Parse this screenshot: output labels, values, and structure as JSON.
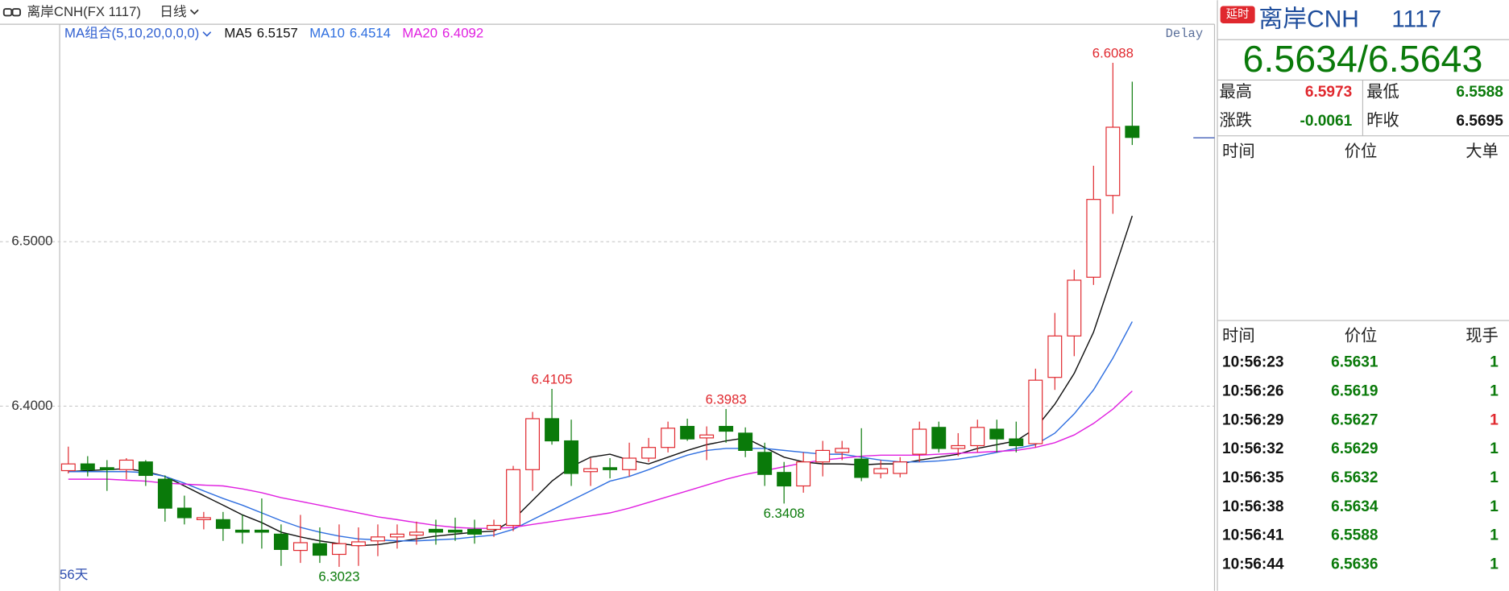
{
  "toolbar": {
    "symbol": "离岸CNH(FX 1117)",
    "period": "日线"
  },
  "chart_data": {
    "type": "candlestick",
    "legend_title": "MA组合(5,10,20,0,0,0)",
    "delay_label": "Delay",
    "period_count_label": "56天",
    "up_color": "#e0282e",
    "down_color": "#0a7a0a",
    "grid": true,
    "ylim": [
      6.2901,
      6.6322
    ],
    "yticks": [
      {
        "value": 6.4,
        "label": "6.4000"
      },
      {
        "value": 6.5,
        "label": "6.5000"
      }
    ],
    "open": [
      6.3608,
      6.3649,
      6.3626,
      6.3614,
      6.3661,
      6.3556,
      6.338,
      6.331,
      6.331,
      6.3246,
      6.3246,
      6.3222,
      6.3123,
      6.3164,
      6.3099,
      6.3152,
      6.3181,
      6.3205,
      6.3216,
      6.3251,
      6.3246,
      6.3251,
      6.3251,
      6.3275,
      6.3614,
      6.3924,
      6.3789,
      6.3602,
      6.3626,
      6.3614,
      6.3684,
      6.3749,
      6.3877,
      6.3807,
      6.3877,
      6.3836,
      6.3719,
      6.3597,
      6.3515,
      6.3661,
      6.3719,
      6.3678,
      6.3591,
      6.3591,
      6.3708,
      6.3871,
      6.3743,
      6.376,
      6.386,
      6.3801,
      6.3772,
      6.4175,
      6.4427,
      6.4784,
      6.5281,
      6.5702
    ],
    "high": [
      6.3754,
      6.3696,
      6.3672,
      6.3684,
      6.3672,
      6.3579,
      6.3456,
      6.3357,
      6.3357,
      6.3339,
      6.3439,
      6.3281,
      6.3339,
      6.3263,
      6.3281,
      6.3263,
      6.3281,
      6.3281,
      6.3298,
      6.331,
      6.3322,
      6.331,
      6.331,
      6.3637,
      6.3965,
      6.4105,
      6.3918,
      6.3684,
      6.3684,
      6.3778,
      6.3807,
      6.3906,
      6.3924,
      6.3877,
      6.3983,
      6.3871,
      6.3778,
      6.3661,
      6.3719,
      6.3789,
      6.3789,
      6.3866,
      6.3672,
      6.369,
      6.3906,
      6.3906,
      6.3836,
      6.3918,
      6.3918,
      6.3906,
      6.4228,
      6.4567,
      6.483,
      6.5462,
      6.6088,
      6.5973
    ],
    "low": [
      6.3591,
      6.3573,
      6.3485,
      6.3556,
      6.3515,
      6.3298,
      6.3281,
      6.3251,
      6.3181,
      6.3164,
      6.3134,
      6.3029,
      6.3047,
      6.3047,
      6.3023,
      6.3029,
      6.3088,
      6.3134,
      6.3158,
      6.3158,
      6.3181,
      6.3164,
      6.3205,
      6.324,
      6.3485,
      6.3766,
      6.3515,
      6.3515,
      6.3561,
      6.3573,
      6.3661,
      6.3719,
      6.3789,
      6.3672,
      6.3778,
      6.369,
      6.3515,
      6.3408,
      6.3474,
      6.3573,
      6.3672,
      6.3544,
      6.3561,
      6.3567,
      6.3661,
      6.3719,
      6.3696,
      6.3719,
      6.3719,
      6.3719,
      6.3749,
      6.4099,
      6.4304,
      6.4737,
      6.517,
      6.5588
    ],
    "close": [
      6.3649,
      6.3614,
      6.3614,
      6.3672,
      6.3579,
      6.338,
      6.3322,
      6.3322,
      6.3257,
      6.3234,
      6.3234,
      6.3129,
      6.317,
      6.3094,
      6.3164,
      6.3175,
      6.3205,
      6.3222,
      6.3234,
      6.3234,
      6.3234,
      6.3222,
      6.3275,
      6.3614,
      6.3924,
      6.3789,
      6.3591,
      6.362,
      6.3614,
      6.3684,
      6.3749,
      6.3866,
      6.3801,
      6.3825,
      6.3848,
      6.3731,
      6.3585,
      6.3515,
      6.3661,
      6.3731,
      6.3743,
      6.3567,
      6.362,
      6.3661,
      6.386,
      6.3743,
      6.376,
      6.3871,
      6.3801,
      6.376,
      6.4158,
      6.4427,
      6.4766,
      6.5257,
      6.5696,
      6.5634
    ],
    "overlays": [
      {
        "name": "MA5",
        "value": 6.5157,
        "color": "#111111",
        "values": [
          6.3602,
          6.3608,
          6.3614,
          6.362,
          6.3602,
          6.3573,
          6.3515,
          6.3456,
          6.3398,
          6.3339,
          6.3292,
          6.3234,
          6.3205,
          6.3181,
          6.3164,
          6.3152,
          6.3158,
          6.3175,
          6.3193,
          6.321,
          6.3222,
          6.3234,
          6.324,
          6.331,
          6.3427,
          6.3544,
          6.3632,
          6.369,
          6.3708,
          6.3672,
          6.3649,
          6.369,
          6.3731,
          6.3766,
          6.3789,
          6.3807,
          6.3749,
          6.369,
          6.3661,
          6.3649,
          6.3649,
          6.3643,
          6.3649,
          6.3649,
          6.3672,
          6.369,
          6.3708,
          6.3743,
          6.3766,
          6.3789,
          6.3865,
          6.4012,
          6.4199,
          6.445,
          6.4801,
          6.5157
        ]
      },
      {
        "name": "MA10",
        "value": 6.4514,
        "color": "#2f6fe0",
        "values": [
          6.3602,
          6.3602,
          6.3602,
          6.3602,
          6.3596,
          6.3573,
          6.3532,
          6.3485,
          6.3439,
          6.3398,
          6.3351,
          6.3304,
          6.3263,
          6.3234,
          6.321,
          6.3193,
          6.3187,
          6.3181,
          6.3181,
          6.3187,
          6.3193,
          6.3205,
          6.3216,
          6.3251,
          6.331,
          6.3368,
          6.3427,
          6.3485,
          6.3544,
          6.3573,
          6.3614,
          6.3661,
          6.3702,
          6.3731,
          6.3743,
          6.3743,
          6.3743,
          6.3731,
          6.3719,
          6.3708,
          6.3708,
          6.369,
          6.3672,
          6.3661,
          6.3661,
          6.3667,
          6.3678,
          6.3696,
          6.3719,
          6.3743,
          6.3766,
          6.3836,
          6.3953,
          6.4099,
          6.4292,
          6.4514
        ]
      },
      {
        "name": "MA20",
        "value": 6.4092,
        "color": "#e020e0",
        "values": [
          6.3556,
          6.3556,
          6.3556,
          6.355,
          6.3544,
          6.3532,
          6.3526,
          6.352,
          6.3515,
          6.3497,
          6.3474,
          6.3444,
          6.3421,
          6.3398,
          6.3374,
          6.3351,
          6.3327,
          6.331,
          6.3292,
          6.3275,
          6.3263,
          6.3257,
          6.3257,
          6.3263,
          6.3281,
          6.3298,
          6.3316,
          6.3333,
          6.3351,
          6.338,
          6.3415,
          6.345,
          6.3485,
          6.352,
          6.3556,
          6.3585,
          6.3608,
          6.3632,
          6.3655,
          6.3672,
          6.3684,
          6.3696,
          6.3702,
          6.3702,
          6.3702,
          6.3708,
          6.3714,
          6.3719,
          6.3725,
          6.3731,
          6.3749,
          6.3778,
          6.3825,
          6.3895,
          6.3982,
          6.4092
        ]
      }
    ],
    "annotations": [
      6.6088,
      6.4105,
      6.3983,
      6.3408,
      6.3023
    ]
  },
  "panel": {
    "badge": "延时",
    "name": "离岸CNH",
    "code": "1117",
    "price": "6.5634/6.5643",
    "stats": [
      {
        "label": "最高",
        "value": "6.5973",
        "color": "#e0282e"
      },
      {
        "label": "最低",
        "value": "6.5588",
        "color": "#0a7a0a"
      },
      {
        "label": "涨跌",
        "value": "-0.0061",
        "color": "#0a7a0a"
      },
      {
        "label": "昨收",
        "value": "6.5695",
        "color": "#111111"
      }
    ],
    "orders_header": [
      "时间",
      "价位",
      "大单"
    ],
    "trades_header": [
      "时间",
      "价位",
      "现手"
    ],
    "trades": [
      {
        "time": "10:56:23",
        "price": "6.5631",
        "qty": "1",
        "qty_color": "#0a7a0a"
      },
      {
        "time": "10:56:26",
        "price": "6.5619",
        "qty": "1",
        "qty_color": "#0a7a0a"
      },
      {
        "time": "10:56:29",
        "price": "6.5627",
        "qty": "1",
        "qty_color": "#e0282e"
      },
      {
        "time": "10:56:32",
        "price": "6.5629",
        "qty": "1",
        "qty_color": "#0a7a0a"
      },
      {
        "time": "10:56:35",
        "price": "6.5632",
        "qty": "1",
        "qty_color": "#0a7a0a"
      },
      {
        "time": "10:56:38",
        "price": "6.5634",
        "qty": "1",
        "qty_color": "#0a7a0a"
      },
      {
        "time": "10:56:41",
        "price": "6.5588",
        "qty": "1",
        "qty_color": "#0a7a0a"
      },
      {
        "time": "10:56:44",
        "price": "6.5636",
        "qty": "1",
        "qty_color": "#0a7a0a"
      }
    ]
  }
}
